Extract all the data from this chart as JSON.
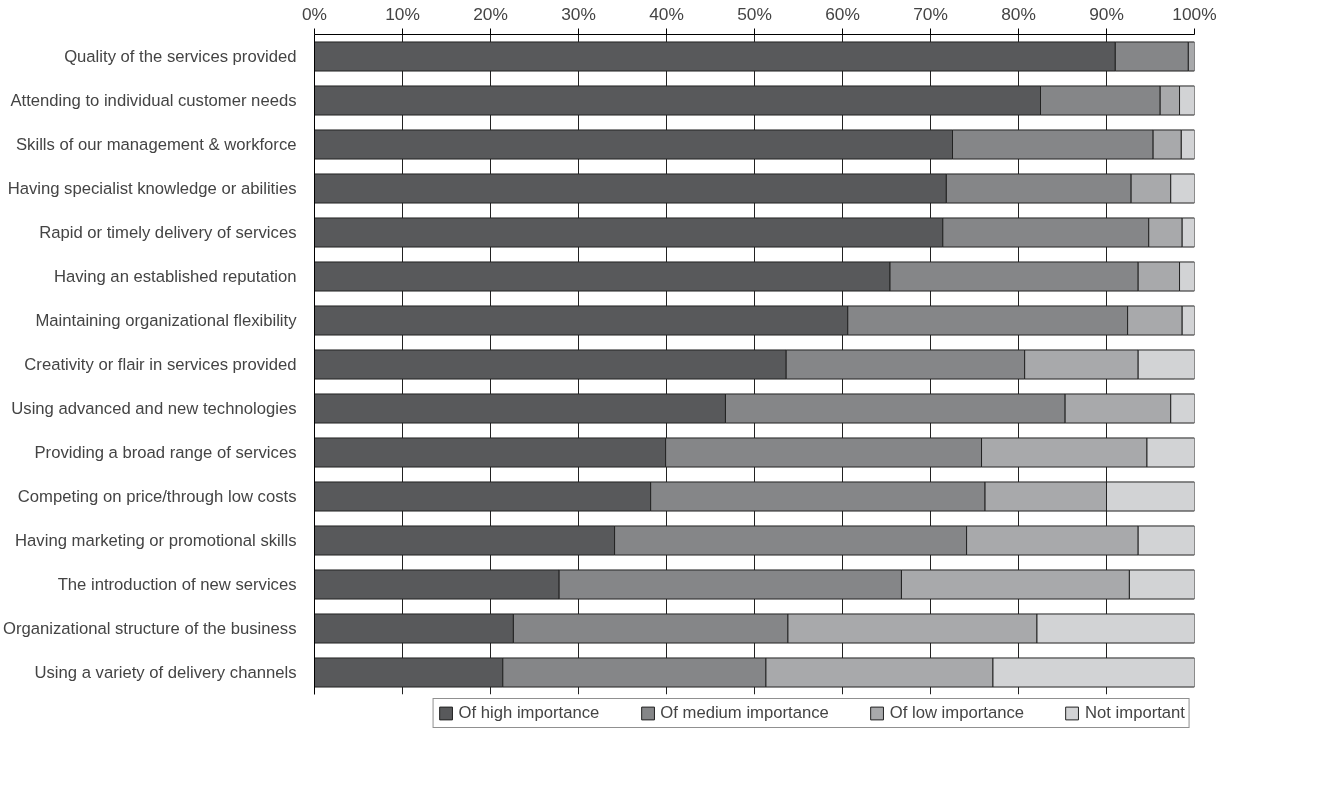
{
  "chart_data": {
    "type": "bar",
    "orientation": "horizontal",
    "stacked": true,
    "categories": [
      "Quality of the services provided",
      "Attending to individual customer needs",
      "Skills of our management & workforce",
      "Having specialist knowledge or abilities",
      "Rapid or timely delivery of services",
      "Having an established reputation",
      "Maintaining organizational flexibility",
      "Creativity or flair in services provided",
      "Using advanced and new technologies",
      "Providing a broad range of services",
      "Competing on price/through low costs",
      "Having marketing or promotional skills",
      "The introduction of new services",
      "Organizational structure of the business",
      "Using a variety of delivery channels"
    ],
    "series": [
      {
        "name": "Of high importance",
        "color": "#58595b",
        "values": [
          91.0,
          82.5,
          72.5,
          71.8,
          71.4,
          65.4,
          60.6,
          53.6,
          46.7,
          39.9,
          38.2,
          34.1,
          27.8,
          22.6,
          21.4
        ]
      },
      {
        "name": "Of medium importance",
        "color": "#858688",
        "values": [
          8.3,
          13.6,
          22.8,
          21.0,
          23.4,
          28.2,
          31.8,
          27.1,
          38.6,
          35.9,
          38.0,
          40.0,
          38.9,
          31.2,
          29.9
        ]
      },
      {
        "name": "Of low importance",
        "color": "#a8a9ab",
        "values": [
          0.7,
          2.2,
          3.2,
          4.5,
          3.8,
          4.7,
          6.2,
          12.9,
          12.0,
          18.8,
          13.8,
          19.5,
          25.9,
          28.3,
          25.8
        ]
      },
      {
        "name": "Not important",
        "color": "#d2d3d5",
        "values": [
          0,
          1.7,
          1.5,
          2.7,
          1.4,
          1.7,
          1.4,
          6.4,
          2.7,
          5.4,
          10.0,
          6.4,
          7.4,
          17.9,
          22.9
        ]
      }
    ],
    "xlim": [
      0,
      100
    ],
    "xticks": [
      {
        "value": 0,
        "label": "0%"
      },
      {
        "value": 10,
        "label": "10%"
      },
      {
        "value": 20,
        "label": "20%"
      },
      {
        "value": 30,
        "label": "30%"
      },
      {
        "value": 40,
        "label": "40%"
      },
      {
        "value": 50,
        "label": "50%"
      },
      {
        "value": 60,
        "label": "60%"
      },
      {
        "value": 70,
        "label": "70%"
      },
      {
        "value": 80,
        "label": "80%"
      },
      {
        "value": 90,
        "label": "90%"
      },
      {
        "value": 100,
        "label": "100%"
      }
    ],
    "grid": "x",
    "legend": "bottom"
  }
}
